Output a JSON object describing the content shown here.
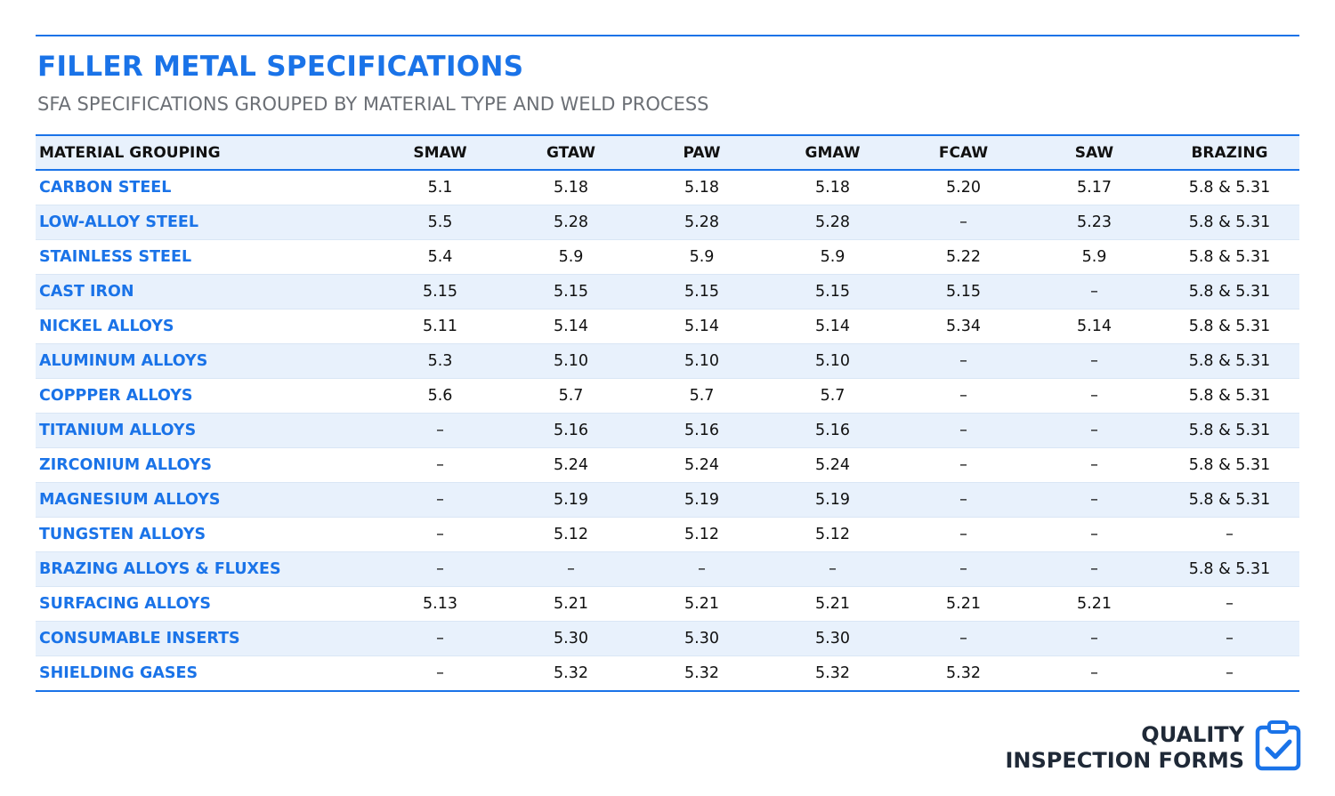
{
  "header": {
    "title": "FILLER METAL SPECIFICATIONS",
    "subtitle": "SFA SPECIFICATIONS GROUPED BY MATERIAL TYPE AND WELD PROCESS"
  },
  "table": {
    "columns": [
      "MATERIAL GROUPING",
      "SMAW",
      "GTAW",
      "PAW",
      "GMAW",
      "FCAW",
      "SAW",
      "BRAZING"
    ],
    "rows": [
      [
        "CARBON STEEL",
        "5.1",
        "5.18",
        "5.18",
        "5.18",
        "5.20",
        "5.17",
        "5.8 & 5.31"
      ],
      [
        "LOW-ALLOY STEEL",
        "5.5",
        "5.28",
        "5.28",
        "5.28",
        "–",
        "5.23",
        "5.8 & 5.31"
      ],
      [
        "STAINLESS STEEL",
        "5.4",
        "5.9",
        "5.9",
        "5.9",
        "5.22",
        "5.9",
        "5.8 & 5.31"
      ],
      [
        "CAST IRON",
        "5.15",
        "5.15",
        "5.15",
        "5.15",
        "5.15",
        "–",
        "5.8 & 5.31"
      ],
      [
        "NICKEL ALLOYS",
        "5.11",
        "5.14",
        "5.14",
        "5.14",
        "5.34",
        "5.14",
        "5.8 & 5.31"
      ],
      [
        "ALUMINUM ALLOYS",
        "5.3",
        "5.10",
        "5.10",
        "5.10",
        "–",
        "–",
        "5.8 & 5.31"
      ],
      [
        "COPPPER ALLOYS",
        "5.6",
        "5.7",
        "5.7",
        "5.7",
        "–",
        "–",
        "5.8 & 5.31"
      ],
      [
        "TITANIUM ALLOYS",
        "–",
        "5.16",
        "5.16",
        "5.16",
        "–",
        "–",
        "5.8 & 5.31"
      ],
      [
        "ZIRCONIUM ALLOYS",
        "–",
        "5.24",
        "5.24",
        "5.24",
        "–",
        "–",
        "5.8 & 5.31"
      ],
      [
        "MAGNESIUM ALLOYS",
        "–",
        "5.19",
        "5.19",
        "5.19",
        "–",
        "–",
        "5.8 & 5.31"
      ],
      [
        "TUNGSTEN ALLOYS",
        "–",
        "5.12",
        "5.12",
        "5.12",
        "–",
        "–",
        "–"
      ],
      [
        "BRAZING ALLOYS & FLUXES",
        "–",
        "–",
        "–",
        "–",
        "–",
        "–",
        "5.8 & 5.31"
      ],
      [
        "SURFACING ALLOYS",
        "5.13",
        "5.21",
        "5.21",
        "5.21",
        "5.21",
        "5.21",
        "–"
      ],
      [
        "CONSUMABLE INSERTS",
        "–",
        "5.30",
        "5.30",
        "5.30",
        "–",
        "–",
        "–"
      ],
      [
        "SHIELDING GASES",
        "–",
        "5.32",
        "5.32",
        "5.32",
        "5.32",
        "–",
        "–"
      ]
    ]
  },
  "footer": {
    "logo_line1": "QUALITY",
    "logo_line2": "INSPECTION FORMS"
  }
}
